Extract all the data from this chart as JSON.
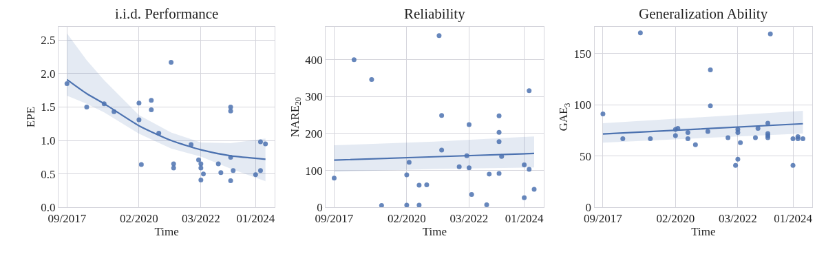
{
  "chart_data": [
    {
      "type": "scatter",
      "title": "i.i.d. Performance",
      "xlabel": "Time",
      "ylabel": "EPE",
      "xlim": [
        "2017-05-20",
        "2024-08-25"
      ],
      "xticks": [
        {
          "value": "2017-09",
          "label": "09/2017"
        },
        {
          "value": "2020-02",
          "label": "02/2020"
        },
        {
          "value": "2022-03",
          "label": "03/2022"
        },
        {
          "value": "2024-01",
          "label": "01/2024"
        }
      ],
      "ylim": [
        0,
        2.7
      ],
      "yticks": [
        {
          "value": 0,
          "label": "0.0"
        },
        0.5,
        {
          "value": 1,
          "label": "1.0"
        },
        1.5,
        {
          "value": 2,
          "label": "2.0"
        },
        2.5
      ],
      "grid": true,
      "series": [
        {
          "marker": "circle",
          "color": "#4c72b0",
          "x": [
            "2017-09",
            "2018-05",
            "2018-12",
            "2019-04",
            "2020-02",
            "2020-02",
            "2020-03",
            "2020-07",
            "2020-07",
            "2020-10",
            "2021-03",
            "2021-04",
            "2021-04",
            "2021-11",
            "2022-02",
            "2022-03",
            "2022-03",
            "2022-04",
            "2022-03",
            "2022-10",
            "2022-11",
            "2023-03",
            "2023-03",
            "2023-03",
            "2023-03",
            "2023-04",
            "2024-01",
            "2024-03",
            "2024-03",
            "2024-05"
          ],
          "values": [
            1.85,
            1.5,
            1.55,
            1.43,
            1.56,
            1.31,
            0.64,
            1.6,
            1.46,
            1.11,
            2.17,
            0.65,
            0.59,
            0.94,
            0.71,
            0.65,
            0.59,
            0.5,
            0.41,
            0.65,
            0.52,
            1.5,
            1.44,
            0.75,
            0.4,
            0.55,
            0.49,
            0.98,
            0.55,
            0.95
          ]
        },
        {
          "type": "line",
          "color": "#4c72b0",
          "x": [
            "2017-09",
            "2018-05",
            "2018-12",
            "2020-02",
            "2021-03",
            "2022-03",
            "2023-03",
            "2024-05"
          ],
          "values": [
            1.91,
            1.7,
            1.55,
            1.22,
            1.0,
            0.86,
            0.77,
            0.72
          ],
          "lower": [
            1.67,
            1.55,
            1.42,
            1.1,
            0.88,
            0.76,
            0.58,
            0.39
          ],
          "upper": [
            2.6,
            2.2,
            1.9,
            1.38,
            1.12,
            0.97,
            0.96,
            1.03
          ]
        }
      ]
    },
    {
      "type": "scatter",
      "title": "Reliability",
      "xlabel": "Time",
      "ylabel": "NARE$_{20}$",
      "xlim": [
        "2017-05-20",
        "2024-08-25"
      ],
      "xticks": [
        {
          "value": "2017-09",
          "label": "09/2017"
        },
        {
          "value": "2020-02",
          "label": "02/2020"
        },
        {
          "value": "2022-03",
          "label": "03/2022"
        },
        {
          "value": "2024-01",
          "label": "01/2024"
        }
      ],
      "ylim": [
        0,
        489
      ],
      "yticks": [
        0,
        100,
        200,
        300,
        400
      ],
      "grid": true,
      "series": [
        {
          "marker": "circle",
          "color": "#4c72b0",
          "x": [
            "2017-09",
            "2018-05",
            "2018-12",
            "2019-04",
            "2020-02",
            "2020-02",
            "2020-03",
            "2020-07",
            "2020-07",
            "2020-10",
            "2021-03",
            "2021-04",
            "2021-04",
            "2021-11",
            "2022-02",
            "2022-03",
            "2022-03",
            "2022-04",
            "2022-10",
            "2022-11",
            "2023-03",
            "2023-03",
            "2023-03",
            "2023-03",
            "2023-04",
            "2024-01",
            "2024-01",
            "2024-03",
            "2024-03",
            "2024-05"
          ],
          "values": [
            79,
            400,
            346,
            5,
            88,
            6,
            122,
            60,
            6,
            61,
            465,
            249,
            155,
            110,
            140,
            224,
            107,
            35,
            7,
            90,
            248,
            203,
            178,
            92,
            138,
            115,
            26,
            316,
            103,
            49
          ]
        },
        {
          "type": "line",
          "color": "#4c72b0",
          "x": [
            "2017-09",
            "2021-01",
            "2024-05"
          ],
          "values": [
            128,
            137,
            146
          ],
          "lower": [
            96,
            104,
            108
          ],
          "upper": [
            168,
            178,
            192
          ]
        }
      ]
    },
    {
      "type": "scatter",
      "title": "Generalization Ability",
      "xlabel": "Time",
      "ylabel": "GAE$_{3}$",
      "xlim": [
        "2017-05-20",
        "2024-08-25"
      ],
      "xticks": [
        {
          "value": "2017-09",
          "label": "09/2017"
        },
        {
          "value": "2020-02",
          "label": "02/2020"
        },
        {
          "value": "2022-03",
          "label": "03/2022"
        },
        {
          "value": "2024-01",
          "label": "01/2024"
        }
      ],
      "ylim": [
        0,
        176
      ],
      "yticks": [
        0,
        50,
        100,
        150
      ],
      "grid": true,
      "series": [
        {
          "marker": "circle",
          "color": "#4c72b0",
          "x": [
            "2017-09",
            "2018-05",
            "2018-12",
            "2019-04",
            "2020-02",
            "2020-02",
            "2020-03",
            "2020-07",
            "2020-07",
            "2020-10",
            "2021-03",
            "2021-04",
            "2021-04",
            "2021-11",
            "2022-02",
            "2022-03",
            "2022-03",
            "2022-03",
            "2022-04",
            "2022-10",
            "2022-11",
            "2023-03",
            "2023-03",
            "2023-03",
            "2023-03",
            "2023-04",
            "2024-01",
            "2024-01",
            "2024-03",
            "2024-03",
            "2024-05"
          ],
          "values": [
            91,
            67,
            170,
            67,
            76,
            70,
            77,
            73,
            67,
            61,
            74,
            134,
            99,
            68,
            41,
            76,
            73,
            47,
            63,
            68,
            77,
            82,
            72,
            70,
            68,
            169,
            67,
            41,
            69,
            67,
            67
          ]
        },
        {
          "type": "line",
          "color": "#4c72b0",
          "x": [
            "2017-09",
            "2021-01",
            "2024-05"
          ],
          "values": [
            71.5,
            76.5,
            81.5
          ],
          "lower": [
            63,
            67.5,
            72
          ],
          "upper": [
            82,
            88,
            94
          ]
        }
      ]
    }
  ]
}
